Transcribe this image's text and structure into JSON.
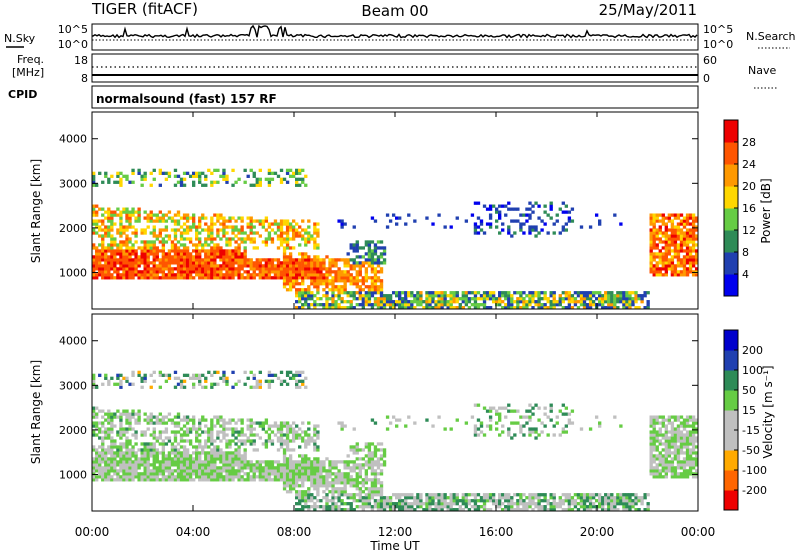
{
  "header": {
    "title": "TIGER (fitACF)",
    "beam": "Beam 00",
    "date": "25/May/2011"
  },
  "top_labels": {
    "nsky": "N.Sky",
    "nsky_hi": "10^5",
    "nsky_lo": "10^0",
    "nsearch": "N.Search",
    "nsearch_hi": "10^5",
    "nsearch_lo": "10^0",
    "freq_line1": "Freq.",
    "freq_line2": "[MHz]",
    "freq_hi": "18",
    "freq_lo": "8",
    "nave": "Nave",
    "nave_hi": "60",
    "nave_lo": "0",
    "cpid": "CPID",
    "cpid_text": "normalsound (fast) 157 RF"
  },
  "chart_data": [
    {
      "type": "heatmap",
      "ylabel": "Slant Range [km]",
      "ylim": [
        180,
        4600
      ],
      "yticks": [
        "1000",
        "2000",
        "3000",
        "4000"
      ],
      "colorbar": {
        "label": "Power [dB]",
        "ticks": [
          "4",
          "8",
          "12",
          "16",
          "20",
          "24",
          "28"
        ],
        "colors": [
          "#0000ee",
          "#2040b0",
          "#2e8b57",
          "#66cc44",
          "#ffd700",
          "#ff9900",
          "#ff5500",
          "#ee0000"
        ]
      }
    },
    {
      "type": "heatmap",
      "ylabel": "Slant Range [km]",
      "ylim": [
        180,
        4600
      ],
      "yticks": [
        "1000",
        "2000",
        "3000",
        "4000"
      ],
      "colorbar": {
        "label": "Velocity [m s⁻¹]",
        "ticks": [
          "-200",
          "-100",
          "-50",
          "-15",
          "15",
          "50",
          "100",
          "200"
        ],
        "colors": [
          "#ee0000",
          "#ff6600",
          "#ffaa00",
          "#c0c0c0",
          "#c0c0c0",
          "#66cc44",
          "#2e8b57",
          "#2040b0",
          "#0000cc"
        ]
      }
    }
  ],
  "xaxis": {
    "label": "Time UT",
    "ticks": [
      "00:00",
      "04:00",
      "08:00",
      "12:00",
      "16:00",
      "20:00",
      "00:00"
    ]
  }
}
